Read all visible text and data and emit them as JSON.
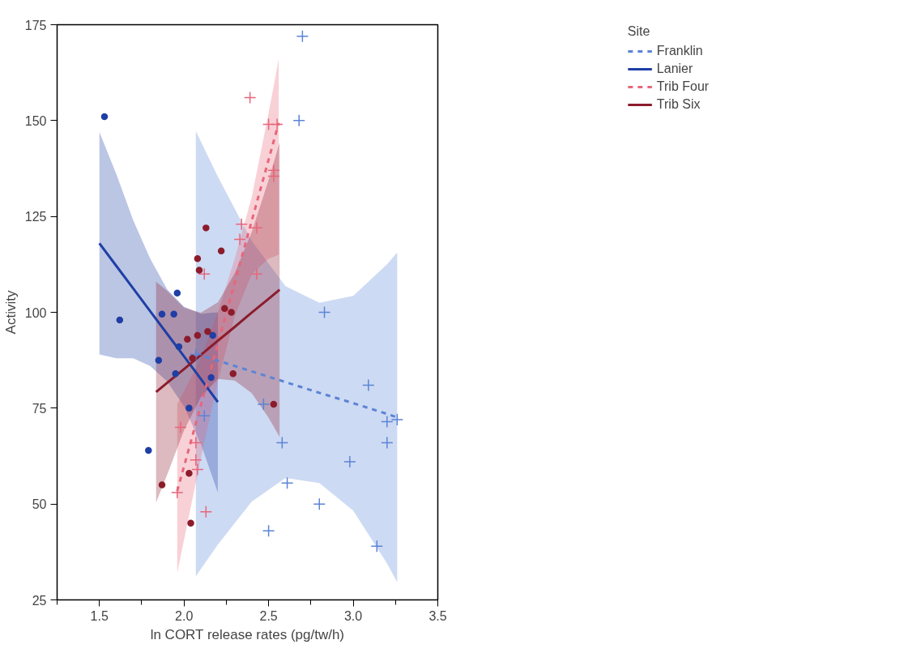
{
  "chart_data": {
    "type": "scatter",
    "xlabel": "ln CORT release rates (pg/tw/h)",
    "ylabel": "Activity",
    "legend_title": "Site",
    "legend": "right",
    "grid": false,
    "xlim": [
      1.25,
      3.5
    ],
    "ylim": [
      25,
      175
    ],
    "xticks": [
      {
        "value": 1.25,
        "label": null
      },
      {
        "value": 1.5,
        "label": "1.5"
      },
      {
        "value": 1.75,
        "label": null
      },
      {
        "value": 2.0,
        "label": "2.0"
      },
      {
        "value": 2.25,
        "label": null
      },
      {
        "value": 2.5,
        "label": "2.5"
      },
      {
        "value": 2.75,
        "label": null
      },
      {
        "value": 3.0,
        "label": "3.0"
      },
      {
        "value": 3.25,
        "label": null
      },
      {
        "value": 3.5,
        "label": "3.5"
      }
    ],
    "yticks": [
      25,
      50,
      75,
      100,
      125,
      150,
      175
    ],
    "series": [
      {
        "marker": "cross",
        "color": "#5b84d6",
        "x": [
          2.07,
          2.12,
          2.47,
          2.5,
          2.58,
          2.61,
          2.68,
          2.7,
          2.8,
          2.83,
          2.98,
          3.09,
          3.14,
          3.2,
          3.2,
          3.26
        ],
        "values": [
          89,
          73,
          76,
          43,
          66,
          55.5,
          150,
          172,
          50,
          100,
          61,
          81,
          39,
          71.5,
          66,
          72
        ]
      },
      {
        "marker": "circle",
        "color": "#1f3fa5",
        "x": [
          1.53,
          1.62,
          1.79,
          1.85,
          1.87,
          1.94,
          1.96,
          1.97,
          1.95,
          2.03,
          2.16,
          2.17
        ],
        "values": [
          151,
          98,
          64,
          87.5,
          99.5,
          99.5,
          105,
          91,
          84,
          75,
          83,
          94
        ]
      },
      {
        "marker": "cross",
        "color": "#e8667a",
        "x": [
          1.96,
          1.98,
          2.07,
          2.07,
          2.08,
          2.12,
          2.13,
          2.33,
          2.34,
          2.39,
          2.43,
          2.43,
          2.5,
          2.53,
          2.53,
          2.55
        ],
        "values": [
          53,
          70,
          66,
          61.5,
          59,
          110,
          48,
          119,
          123,
          156,
          122,
          110,
          149,
          137,
          135.5,
          149
        ]
      },
      {
        "marker": "circle",
        "color": "#8b1c2c",
        "x": [
          1.87,
          2.02,
          2.03,
          2.04,
          2.05,
          2.08,
          2.08,
          2.09,
          2.13,
          2.14,
          2.22,
          2.24,
          2.28,
          2.29,
          2.53
        ],
        "values": [
          55,
          93,
          58,
          45,
          88,
          114,
          94,
          111,
          122,
          95,
          116,
          101,
          100,
          84,
          76
        ]
      },
      {
        "type": "line",
        "name": "Franklin",
        "line_style": "dashed",
        "color": "#5b84d6",
        "x": [
          2.07,
          2.2,
          2.4,
          2.6,
          2.8,
          3.0,
          3.2,
          3.26
        ],
        "values": [
          89.2,
          87.4,
          84.6,
          81.8,
          79.0,
          76.3,
          73.5,
          72.6
        ],
        "upper": [
          147.2,
          135.4,
          118.6,
          106.8,
          102.5,
          104.3,
          112.5,
          115.6
        ],
        "lower": [
          31.2,
          39.4,
          50.6,
          56.8,
          55.5,
          48.3,
          34.5,
          29.6
        ]
      },
      {
        "type": "line",
        "name": "Lanier",
        "line_style": "solid",
        "color": "#1f3fa5",
        "x": [
          1.5,
          1.6,
          1.7,
          1.8,
          1.9,
          2.0,
          2.1,
          2.2
        ],
        "values": [
          118,
          112.1,
          106.2,
          100.3,
          94.4,
          88.5,
          82.6,
          76.6
        ],
        "upper": [
          147,
          136,
          124,
          114,
          106,
          101.5,
          99.6,
          100
        ],
        "lower": [
          89,
          88,
          88,
          86,
          82,
          75.5,
          65.6,
          53
        ]
      },
      {
        "type": "line",
        "name": "Trib Four",
        "line_style": "dashed",
        "color": "#e8667a",
        "x": [
          1.96,
          2.1,
          2.2,
          2.3,
          2.4,
          2.5,
          2.56
        ],
        "values": [
          53.4,
          75.8,
          91.8,
          107.8,
          123.8,
          139.8,
          149.4
        ],
        "upper": [
          76,
          88,
          100,
          114,
          130,
          152,
          166
        ],
        "lower": [
          32,
          62,
          82,
          99,
          110,
          114,
          115
        ]
      },
      {
        "type": "line",
        "name": "Trib Six",
        "line_style": "solid",
        "color": "#8b1c2c",
        "x": [
          1.835,
          1.9,
          2.0,
          2.1,
          2.2,
          2.3,
          2.4,
          2.5,
          2.565
        ],
        "values": [
          79.2,
          81.6,
          85.2,
          88.9,
          92.6,
          96.2,
          99.9,
          103.5,
          105.9
        ],
        "upper": [
          108,
          105.6,
          101.2,
          99.9,
          102.6,
          110.2,
          120.9,
          134.5,
          144.3
        ],
        "lower": [
          50.4,
          57.6,
          69.2,
          77.9,
          82.6,
          82.2,
          78.9,
          72.5,
          67.5
        ]
      }
    ]
  }
}
